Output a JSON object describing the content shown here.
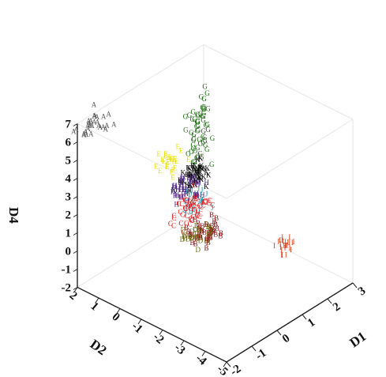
{
  "chart_data": {
    "type": "scatter",
    "dimensions": 3,
    "title": "",
    "axes": {
      "d1": {
        "label": "D1",
        "range": [
          -2,
          3
        ],
        "ticks": [
          "-2",
          "-1",
          "0",
          "1",
          "2",
          "3"
        ]
      },
      "d2": {
        "label": "D2",
        "range": [
          -2,
          5
        ],
        "ticks": [
          "2",
          "1",
          "0",
          "-1",
          "-2",
          "-3",
          "-4",
          "-5"
        ]
      },
      "d4": {
        "label": "D4",
        "range": [
          -2,
          7
        ],
        "ticks": [
          "-2",
          "-1",
          "0",
          "1",
          "2",
          "3",
          "4",
          "5",
          "6",
          "7"
        ]
      }
    },
    "grid": false,
    "legend": "none",
    "clusters": [
      {
        "marker": "A",
        "color": "#555555",
        "center": [
          -1.3,
          -2.2,
          6.0
        ],
        "spread": [
          0.35,
          0.3,
          0.35
        ],
        "count": 28
      },
      {
        "marker": "G",
        "color": "#1e6b12",
        "center": [
          2.0,
          -1.0,
          3.6
        ],
        "spread": [
          0.15,
          0.2,
          0.9
        ],
        "count": 60
      },
      {
        "marker": "E",
        "color": "#e8e010",
        "center": [
          1.0,
          -1.2,
          2.7
        ],
        "spread": [
          0.2,
          0.2,
          0.25
        ],
        "count": 25
      },
      {
        "marker": "K",
        "color": "#000000",
        "center": [
          1.7,
          -0.8,
          1.6
        ],
        "spread": [
          0.3,
          0.2,
          0.25
        ],
        "count": 50
      },
      {
        "marker": "H",
        "color": "#4b1e8a",
        "center": [
          1.2,
          -0.5,
          1.4
        ],
        "spread": [
          0.3,
          0.25,
          0.3
        ],
        "count": 40
      },
      {
        "marker": "J",
        "color": "#1c8fa0",
        "center": [
          1.1,
          -0.1,
          1.1
        ],
        "spread": [
          0.25,
          0.2,
          0.3
        ],
        "count": 30
      },
      {
        "marker": "C",
        "color": "#e01818",
        "center": [
          0.5,
          0.3,
          1.4
        ],
        "spread": [
          0.35,
          0.25,
          0.3
        ],
        "count": 55
      },
      {
        "marker": "B",
        "color": "#8a1010",
        "center": [
          -0.2,
          1.8,
          1.5
        ],
        "spread": [
          0.3,
          0.25,
          0.3
        ],
        "count": 45
      },
      {
        "marker": "D",
        "color": "#6b6b10",
        "center": [
          -0.5,
          1.9,
          1.7
        ],
        "spread": [
          0.25,
          0.2,
          0.3
        ],
        "count": 25
      },
      {
        "marker": "I",
        "color": "#e03a10",
        "center": [
          1.8,
          3.2,
          0.0
        ],
        "spread": [
          0.15,
          0.15,
          0.2
        ],
        "count": 25
      }
    ]
  }
}
